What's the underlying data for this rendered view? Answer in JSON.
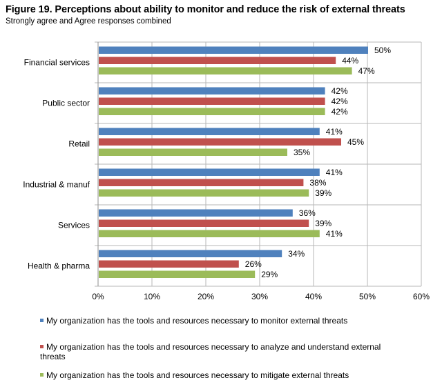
{
  "title": "Figure 19. Perceptions about ability to monitor and reduce the risk of external threats",
  "subtitle": "Strongly agree and Agree responses combined",
  "colors": {
    "monitor": "#4f81bd",
    "analyze": "#c0504d",
    "mitigate": "#9bbb59"
  },
  "chart_data": {
    "type": "bar",
    "orientation": "horizontal",
    "title": "Figure 19. Perceptions about ability to monitor and reduce the risk of external threats",
    "subtitle": "Strongly agree and Agree responses combined",
    "categories": [
      "Financial services",
      "Public sector",
      "Retail",
      "Industrial & manuf",
      "Services",
      "Health & pharma"
    ],
    "series": [
      {
        "name": "My organization has the tools and resources necessary to monitor external threats",
        "color": "#4f81bd",
        "values": [
          50,
          42,
          41,
          41,
          36,
          34
        ],
        "labels": [
          "50%",
          "42%",
          "41%",
          "41%",
          "36%",
          "34%"
        ]
      },
      {
        "name": "My organization has the tools and resources necessary to analyze and understand external threats",
        "color": "#c0504d",
        "values": [
          44,
          42,
          45,
          38,
          39,
          26
        ],
        "labels": [
          "44%",
          "42%",
          "45%",
          "38%",
          "39%",
          "26%"
        ]
      },
      {
        "name": "My organization has the tools and resources necessary to mitigate external threats",
        "color": "#9bbb59",
        "values": [
          47,
          42,
          35,
          39,
          41,
          29
        ],
        "labels": [
          "47%",
          "42%",
          "35%",
          "39%",
          "41%",
          "29%"
        ]
      }
    ],
    "xlim": [
      0,
      60
    ],
    "xticks": [
      "0%",
      "10%",
      "20%",
      "30%",
      "40%",
      "50%",
      "60%"
    ],
    "grid": true,
    "legend_position": "bottom"
  }
}
